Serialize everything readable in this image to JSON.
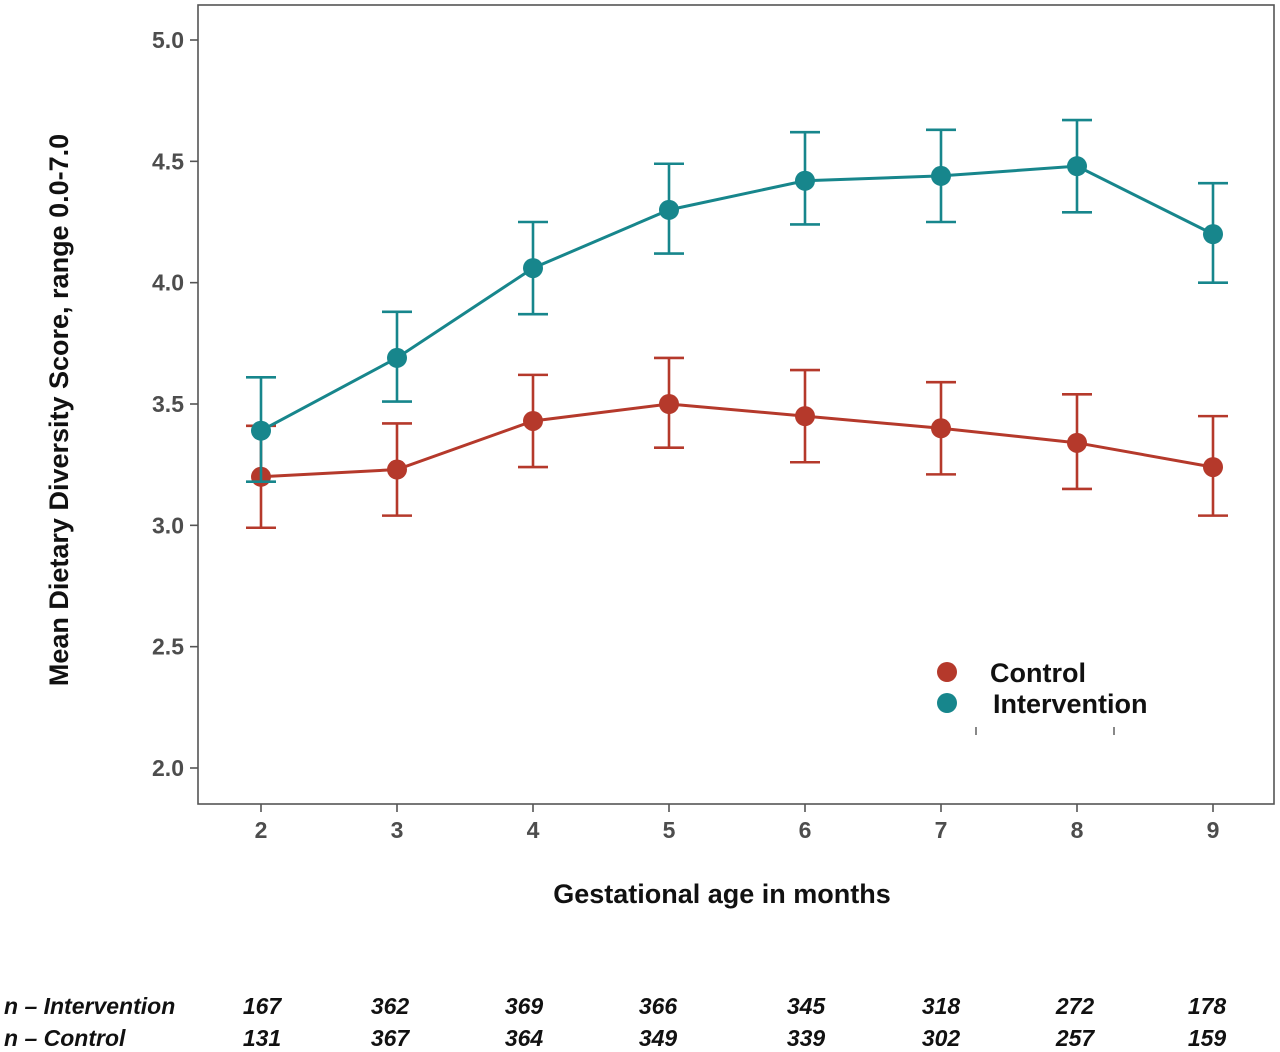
{
  "chart_data": {
    "type": "line",
    "title": "",
    "xlabel": "Gestational age in months",
    "ylabel": "Mean Dietary Diversity Score, range  0.0-7.0",
    "x": [
      2,
      3,
      4,
      5,
      6,
      7,
      8,
      9
    ],
    "x_tick_labels": [
      "2",
      "3",
      "4",
      "5",
      "6",
      "7",
      "8",
      "9"
    ],
    "ylim": [
      2.0,
      5.0
    ],
    "y_ticks": [
      2.0,
      2.5,
      3.0,
      3.5,
      4.0,
      4.5,
      5.0
    ],
    "y_tick_labels": [
      "2.0",
      "2.5",
      "3.0",
      "3.5",
      "4.0",
      "4.5",
      "5.0"
    ],
    "error_bars": true,
    "grid": false,
    "legend_position": "bottom-right",
    "series": [
      {
        "name": "Control",
        "color": "#b5392b",
        "values": [
          3.2,
          3.23,
          3.43,
          3.5,
          3.45,
          3.4,
          3.34,
          3.24
        ],
        "lower": [
          2.99,
          3.04,
          3.24,
          3.32,
          3.26,
          3.21,
          3.15,
          3.04
        ],
        "upper": [
          3.41,
          3.42,
          3.62,
          3.69,
          3.64,
          3.59,
          3.54,
          3.45
        ]
      },
      {
        "name": "Intervention",
        "color": "#17868c",
        "values": [
          3.39,
          3.69,
          4.06,
          4.3,
          4.42,
          4.44,
          4.48,
          4.2
        ],
        "lower": [
          3.18,
          3.51,
          3.87,
          4.12,
          4.24,
          4.25,
          4.29,
          4.0
        ],
        "upper": [
          3.61,
          3.88,
          4.25,
          4.49,
          4.62,
          4.63,
          4.67,
          4.41
        ]
      }
    ],
    "sample_sizes": [
      {
        "label": "n – Intervention",
        "values": [
          "167",
          "362",
          "369",
          "366",
          "345",
          "318",
          "272",
          "178"
        ]
      },
      {
        "label": "n – Control",
        "values": [
          "131",
          "367",
          "364",
          "349",
          "339",
          "302",
          "257",
          "159"
        ]
      }
    ]
  }
}
